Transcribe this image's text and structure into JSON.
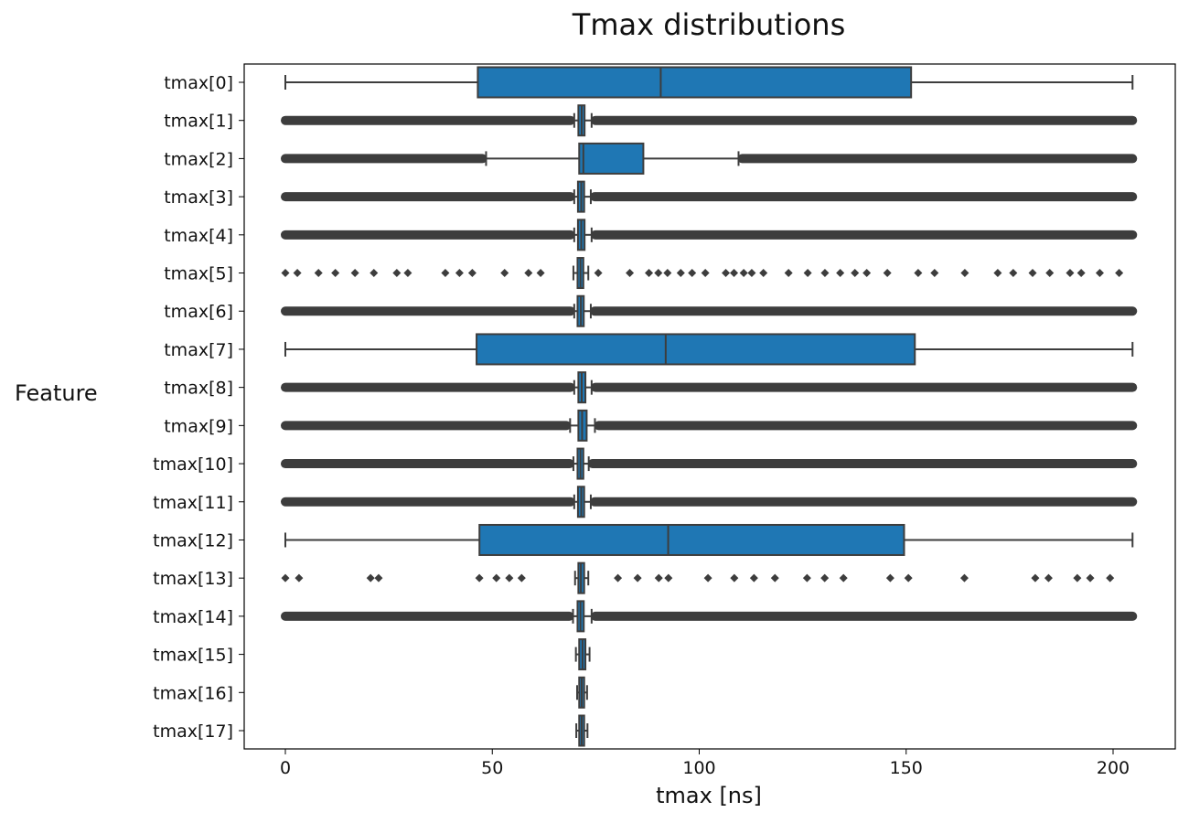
{
  "chart_data": {
    "type": "box",
    "title": "Tmax distributions",
    "xlabel": "tmax [ns]",
    "ylabel": "Feature",
    "xlim": [
      -10,
      215
    ],
    "xticks": [
      0,
      50,
      100,
      150,
      200
    ],
    "grid": false,
    "colors": {
      "box": "#1f77b4",
      "edge": "#3d3d3d",
      "axis": "#000000"
    },
    "series": [
      {
        "label": "tmax[0]",
        "whislo": 0,
        "q1": 46.5,
        "med": 90.7,
        "q3": 151.2,
        "whishi": 204.7,
        "outliers": "none"
      },
      {
        "label": "tmax[1]",
        "whislo": 69.8,
        "q1": 70.8,
        "med": 71.6,
        "q3": 72.3,
        "whishi": 74.0,
        "outliers": "dense"
      },
      {
        "label": "tmax[2]",
        "whislo": 48.5,
        "q1": 71.0,
        "med": 72.0,
        "q3": 86.5,
        "whishi": 109.5,
        "outliers": "dense"
      },
      {
        "label": "tmax[3]",
        "whislo": 69.8,
        "q1": 70.7,
        "med": 71.5,
        "q3": 72.2,
        "whishi": 73.8,
        "outliers": "dense"
      },
      {
        "label": "tmax[4]",
        "whislo": 69.8,
        "q1": 70.7,
        "med": 71.5,
        "q3": 72.3,
        "whishi": 74.0,
        "outliers": "dense"
      },
      {
        "label": "tmax[5]",
        "whislo": 69.6,
        "q1": 70.6,
        "med": 71.3,
        "q3": 72.0,
        "whishi": 73.2,
        "outliers": "sparse"
      },
      {
        "label": "tmax[6]",
        "whislo": 69.8,
        "q1": 70.6,
        "med": 71.4,
        "q3": 72.1,
        "whishi": 73.8,
        "outliers": "dense"
      },
      {
        "label": "tmax[7]",
        "whislo": 0,
        "q1": 46.2,
        "med": 91.9,
        "q3": 152.1,
        "whishi": 204.7,
        "outliers": "none"
      },
      {
        "label": "tmax[8]",
        "whislo": 69.8,
        "q1": 70.8,
        "med": 71.6,
        "q3": 72.5,
        "whishi": 74.0,
        "outliers": "dense"
      },
      {
        "label": "tmax[9]",
        "whislo": 68.8,
        "q1": 70.8,
        "med": 71.7,
        "q3": 72.8,
        "whishi": 74.8,
        "outliers": "dense"
      },
      {
        "label": "tmax[10]",
        "whislo": 69.6,
        "q1": 70.6,
        "med": 71.3,
        "q3": 72.0,
        "whishi": 73.3,
        "outliers": "dense"
      },
      {
        "label": "tmax[11]",
        "whislo": 69.8,
        "q1": 70.7,
        "med": 71.5,
        "q3": 72.2,
        "whishi": 73.8,
        "outliers": "dense"
      },
      {
        "label": "tmax[12]",
        "whislo": 0,
        "q1": 46.9,
        "med": 92.5,
        "q3": 149.5,
        "whishi": 204.7,
        "outliers": "none"
      },
      {
        "label": "tmax[13]",
        "whislo": 70.0,
        "q1": 70.8,
        "med": 71.4,
        "q3": 72.2,
        "whishi": 73.2,
        "outliers": "sparse"
      },
      {
        "label": "tmax[14]",
        "whislo": 69.5,
        "q1": 70.6,
        "med": 71.3,
        "q3": 72.1,
        "whishi": 74.0,
        "outliers": "dense"
      },
      {
        "label": "tmax[15]",
        "whislo": 70.2,
        "q1": 71.0,
        "med": 71.8,
        "q3": 72.5,
        "whishi": 73.5,
        "outliers": "none"
      },
      {
        "label": "tmax[16]",
        "whislo": 70.5,
        "q1": 71.0,
        "med": 71.6,
        "q3": 72.2,
        "whishi": 72.9,
        "outliers": "none"
      },
      {
        "label": "tmax[17]",
        "whislo": 70.3,
        "q1": 71.0,
        "med": 71.6,
        "q3": 72.2,
        "whishi": 73.0,
        "outliers": "none"
      }
    ]
  }
}
